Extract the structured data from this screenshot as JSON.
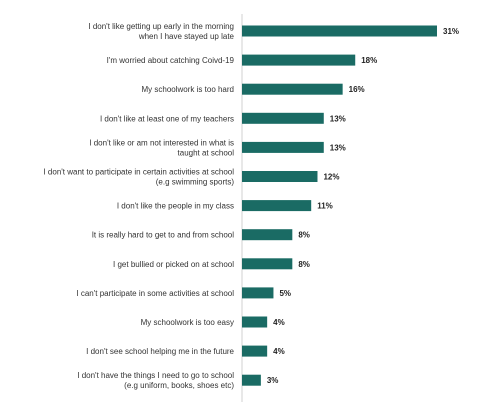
{
  "chart_data": {
    "type": "bar",
    "orientation": "horizontal",
    "title": "",
    "xlabel": "",
    "ylabel": "",
    "categories": [
      [
        "I don't like getting up early in the morning",
        "when I have stayed up late"
      ],
      [
        "I'm worried about catching Coivd-19"
      ],
      [
        "My schoolwork is too hard"
      ],
      [
        "I don't like at least one of my teachers"
      ],
      [
        "I don't like or am not interested in what is",
        "taught at school"
      ],
      [
        "I don't want to participate in certain activities at school",
        "(e.g swimming sports)"
      ],
      [
        "I don't like the people in my class"
      ],
      [
        "It is really hard to get to and from school"
      ],
      [
        "I get bullied or picked on at school"
      ],
      [
        "I can't participate in some activities at school"
      ],
      [
        "My schoolwork is too easy"
      ],
      [
        "I don't see school helping me in the future"
      ],
      [
        "I don't have the things I need to go to school",
        "(e.g uniform, books, shoes etc)"
      ]
    ],
    "values": [
      31,
      18,
      16,
      13,
      13,
      12,
      11,
      8,
      8,
      5,
      4,
      4,
      3
    ],
    "value_labels": [
      "31%",
      "18%",
      "16%",
      "13%",
      "13%",
      "12%",
      "11%",
      "8%",
      "8%",
      "5%",
      "4%",
      "4%",
      "3%"
    ],
    "unit": "%",
    "xlim": [
      0,
      31
    ],
    "grid": false,
    "legend": "none",
    "bar_color": "#1a6b64"
  }
}
